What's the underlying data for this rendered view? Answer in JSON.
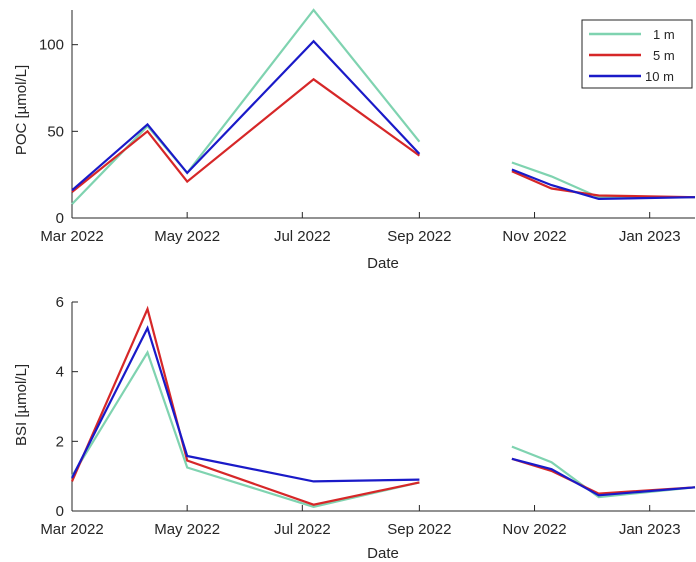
{
  "figure": {
    "type": "matlab-line-figure"
  },
  "chart_data": [
    {
      "type": "line",
      "xlabel": "Date",
      "ylabel": "POC [µmol/L]",
      "x_ticks": [
        "Mar 2022",
        "May 2022",
        "Jul 2022",
        "Sep 2022",
        "Nov 2022",
        "Jan 2023"
      ],
      "x_tick_dates": [
        "2022-03-01",
        "2022-05-01",
        "2022-07-01",
        "2022-09-01",
        "2022-11-01",
        "2023-01-01"
      ],
      "xlim": [
        "2022-03-01",
        "2023-01-25"
      ],
      "y_ticks": [
        0,
        50,
        100
      ],
      "ylim": [
        0,
        120
      ],
      "grid": false,
      "legend": {
        "location": "top-right",
        "entries": [
          "1 m",
          "5 m",
          "10 m"
        ]
      },
      "series": [
        {
          "name": "1 m",
          "color": "#7fd3b0",
          "segments": [
            [
              [
                "2022-03-01",
                8
              ],
              [
                "2022-04-10",
                53
              ],
              [
                "2022-05-01",
                26
              ],
              [
                "2022-07-07",
                120
              ],
              [
                "2022-09-01",
                44
              ]
            ],
            [
              [
                "2022-10-20",
                32
              ],
              [
                "2022-11-10",
                24
              ],
              [
                "2022-12-05",
                12
              ],
              [
                "2023-01-25",
                12
              ]
            ]
          ]
        },
        {
          "name": "5 m",
          "color": "#d62728",
          "segments": [
            [
              [
                "2022-03-01",
                15
              ],
              [
                "2022-04-10",
                50
              ],
              [
                "2022-05-01",
                21
              ],
              [
                "2022-07-07",
                80
              ],
              [
                "2022-09-01",
                36
              ]
            ],
            [
              [
                "2022-10-20",
                27
              ],
              [
                "2022-11-10",
                17
              ],
              [
                "2022-12-05",
                13
              ],
              [
                "2023-01-25",
                12
              ]
            ]
          ]
        },
        {
          "name": "10 m",
          "color": "#1a1ac8",
          "segments": [
            [
              [
                "2022-03-01",
                16
              ],
              [
                "2022-04-10",
                54
              ],
              [
                "2022-05-01",
                26
              ],
              [
                "2022-07-07",
                102
              ],
              [
                "2022-09-01",
                37
              ]
            ],
            [
              [
                "2022-10-20",
                28
              ],
              [
                "2022-11-10",
                19
              ],
              [
                "2022-12-05",
                11
              ],
              [
                "2023-01-25",
                12
              ]
            ]
          ]
        }
      ]
    },
    {
      "type": "line",
      "xlabel": "Date",
      "ylabel": "BSI [µmol/L]",
      "x_ticks": [
        "Mar 2022",
        "May 2022",
        "Jul 2022",
        "Sep 2022",
        "Nov 2022",
        "Jan 2023"
      ],
      "x_tick_dates": [
        "2022-03-01",
        "2022-05-01",
        "2022-07-01",
        "2022-09-01",
        "2022-11-01",
        "2023-01-01"
      ],
      "xlim": [
        "2022-03-01",
        "2023-01-25"
      ],
      "y_ticks": [
        0,
        2,
        4,
        6
      ],
      "ylim": [
        0,
        6
      ],
      "grid": false,
      "series": [
        {
          "name": "1 m",
          "color": "#7fd3b0",
          "segments": [
            [
              [
                "2022-03-01",
                1.0
              ],
              [
                "2022-04-10",
                4.55
              ],
              [
                "2022-05-01",
                1.25
              ],
              [
                "2022-07-07",
                0.12
              ],
              [
                "2022-09-01",
                0.82
              ]
            ],
            [
              [
                "2022-10-20",
                1.85
              ],
              [
                "2022-11-10",
                1.4
              ],
              [
                "2022-12-05",
                0.4
              ],
              [
                "2023-01-25",
                0.68
              ]
            ]
          ]
        },
        {
          "name": "5 m",
          "color": "#d62728",
          "segments": [
            [
              [
                "2022-03-01",
                0.85
              ],
              [
                "2022-04-10",
                5.8
              ],
              [
                "2022-05-01",
                1.45
              ],
              [
                "2022-07-07",
                0.18
              ],
              [
                "2022-09-01",
                0.82
              ]
            ],
            [
              [
                "2022-10-20",
                1.5
              ],
              [
                "2022-11-10",
                1.15
              ],
              [
                "2022-12-05",
                0.5
              ],
              [
                "2023-01-25",
                0.68
              ]
            ]
          ]
        },
        {
          "name": "10 m",
          "color": "#1a1ac8",
          "segments": [
            [
              [
                "2022-03-01",
                0.95
              ],
              [
                "2022-04-10",
                5.25
              ],
              [
                "2022-05-01",
                1.58
              ],
              [
                "2022-07-07",
                0.85
              ],
              [
                "2022-09-01",
                0.9
              ]
            ],
            [
              [
                "2022-10-20",
                1.5
              ],
              [
                "2022-11-10",
                1.2
              ],
              [
                "2022-12-05",
                0.45
              ],
              [
                "2023-01-25",
                0.68
              ]
            ]
          ]
        }
      ]
    }
  ]
}
